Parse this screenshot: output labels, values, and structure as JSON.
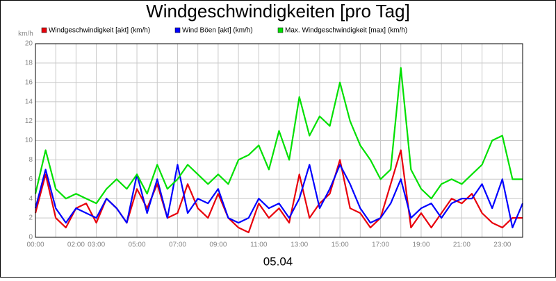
{
  "chart_data": {
    "type": "line",
    "title": "Windgeschwindigkeiten [pro Tag]",
    "y_label": "km/h",
    "x_label": "05.04",
    "x": [
      0,
      0.5,
      1,
      1.5,
      2,
      2.5,
      3,
      3.5,
      4,
      4.5,
      5,
      5.5,
      6,
      6.5,
      7,
      7.5,
      8,
      8.5,
      9,
      9.5,
      10,
      10.5,
      11,
      11.5,
      12,
      12.5,
      13,
      13.5,
      14,
      14.5,
      15,
      15.5,
      16,
      16.5,
      17,
      17.5,
      18,
      18.5,
      19,
      19.5,
      20,
      20.5,
      21,
      21.5,
      22,
      22.5,
      23,
      23.5,
      24
    ],
    "series": [
      {
        "name": "Windgeschwindigkeit [akt] (km/h)",
        "color": "#e8000b",
        "values": [
          2.5,
          6.5,
          2,
          1,
          3,
          3.5,
          1.5,
          4,
          3,
          1.5,
          5,
          3,
          5.5,
          2,
          2.5,
          5.5,
          3,
          2,
          4.5,
          2,
          1,
          0.5,
          3.5,
          2,
          3,
          1.5,
          6.5,
          2,
          3.5,
          4.5,
          8,
          3,
          2.5,
          1,
          2,
          5.5,
          9,
          1,
          2.5,
          1,
          2.5,
          4,
          3.5,
          4.5,
          2.5,
          1.5,
          1,
          2,
          2
        ]
      },
      {
        "name": "Wind Böen [akt] (km/h)",
        "color": "#0000ff",
        "values": [
          3,
          7,
          3,
          1.5,
          3,
          2.5,
          2,
          4,
          3,
          1.5,
          6.5,
          2.5,
          6,
          2,
          7.5,
          2.5,
          4,
          3.5,
          5,
          2,
          1.5,
          2,
          4,
          3,
          3.5,
          2,
          4,
          7.5,
          3,
          5,
          7.5,
          5.5,
          3,
          1.5,
          2,
          3.5,
          6,
          2,
          3,
          3.5,
          2,
          3.5,
          4,
          4,
          5.5,
          3,
          6,
          1,
          3.5
        ]
      },
      {
        "name": "Max. Windgeschwindigkeit [max] (km/h)",
        "color": "#00e000",
        "values": [
          4.5,
          9,
          5,
          4,
          4.5,
          4,
          3.5,
          5,
          6,
          5,
          6.5,
          4.5,
          7.5,
          5,
          6,
          7.5,
          6.5,
          5.5,
          6.5,
          5.5,
          8,
          8.5,
          9.5,
          7,
          11,
          8,
          14.5,
          10.5,
          12.5,
          11.5,
          16,
          12,
          9.5,
          8,
          6,
          7,
          17.5,
          7,
          5,
          4,
          5.5,
          6,
          5.5,
          6.5,
          7.5,
          10,
          10.5,
          6,
          6
        ]
      }
    ],
    "xlim": [
      0,
      24
    ],
    "ylim": [
      0,
      20
    ],
    "yticks": [
      0,
      2,
      4,
      6,
      8,
      10,
      12,
      14,
      16,
      18,
      20
    ],
    "xticks": [
      {
        "value": 0,
        "label": "00:00"
      },
      {
        "value": 2,
        "label": "02:00"
      },
      {
        "value": 3,
        "label": "03:00"
      },
      {
        "value": 5,
        "label": "05:00"
      },
      {
        "value": 7,
        "label": "07:00"
      },
      {
        "value": 9,
        "label": "09:00"
      },
      {
        "value": 11,
        "label": "11:00"
      },
      {
        "value": 13,
        "label": "13:00"
      },
      {
        "value": 15,
        "label": "15:00"
      },
      {
        "value": 17,
        "label": "17:00"
      },
      {
        "value": 19,
        "label": "19:00"
      },
      {
        "value": 21,
        "label": "21:00"
      },
      {
        "value": 23,
        "label": "23:00"
      }
    ],
    "xminor_ticks": [
      1,
      4,
      6,
      8,
      10,
      12,
      14,
      16,
      18,
      20,
      22,
      24
    ],
    "grid": true
  }
}
